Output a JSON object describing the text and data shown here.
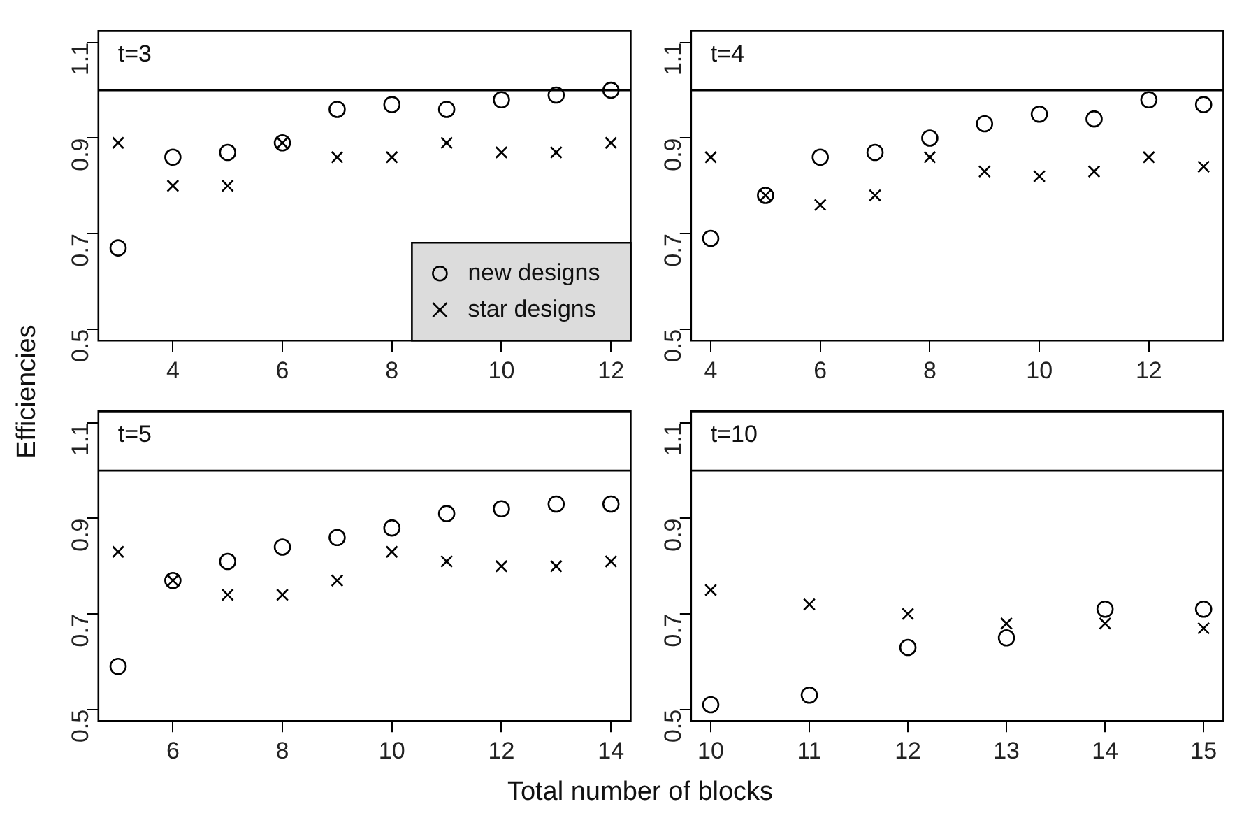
{
  "chart_data": [
    {
      "type": "scatter",
      "title": "t=3",
      "xlabel": "Total number of blocks",
      "ylabel": "Efficiencies",
      "x": [
        3,
        4,
        5,
        6,
        7,
        8,
        9,
        10,
        11,
        12
      ],
      "xlim": [
        2.64,
        12.36
      ],
      "xticks": [
        4,
        6,
        8,
        10,
        12
      ],
      "ylim": [
        0.476,
        1.124
      ],
      "yticks": [
        0.5,
        0.7,
        0.9,
        1.1
      ],
      "grid": false,
      "legend": "bottom right",
      "ref_lines": [
        {
          "axis": "y",
          "value": 1.0,
          "color": "#000000"
        }
      ],
      "series": [
        {
          "name": "new designs",
          "color": "#000000",
          "marker": "circle",
          "values": [
            0.67,
            0.86,
            0.87,
            0.89,
            0.96,
            0.97,
            0.96,
            0.98,
            0.99,
            1.0
          ]
        },
        {
          "name": "star designs",
          "color": "#000000",
          "marker": "cross",
          "values": [
            0.89,
            0.8,
            0.8,
            0.89,
            0.86,
            0.86,
            0.89,
            0.87,
            0.87,
            0.89
          ]
        }
      ]
    },
    {
      "type": "scatter",
      "title": "t=4",
      "x": [
        4,
        5,
        6,
        7,
        8,
        9,
        10,
        11,
        12,
        13
      ],
      "xlim": [
        3.64,
        13.36
      ],
      "xticks": [
        4,
        6,
        8,
        10,
        12
      ],
      "ylim": [
        0.476,
        1.124
      ],
      "yticks": [
        0.5,
        0.7,
        0.9,
        1.1
      ],
      "grid": false,
      "ref_lines": [
        {
          "axis": "y",
          "value": 1.0,
          "color": "#000000"
        }
      ],
      "series": [
        {
          "color": "#000000",
          "marker": "circle",
          "values": [
            0.69,
            0.78,
            0.86,
            0.87,
            0.9,
            0.93,
            0.95,
            0.94,
            0.98,
            0.97
          ]
        },
        {
          "color": "#000000",
          "marker": "cross",
          "values": [
            0.86,
            0.78,
            0.76,
            0.78,
            0.86,
            0.83,
            0.82,
            0.83,
            0.86,
            0.84
          ]
        }
      ]
    },
    {
      "type": "scatter",
      "title": "t=5",
      "x": [
        5,
        6,
        7,
        8,
        9,
        10,
        11,
        12,
        13,
        14
      ],
      "xlim": [
        4.64,
        14.36
      ],
      "xticks": [
        6,
        8,
        10,
        12,
        14
      ],
      "ylim": [
        0.476,
        1.124
      ],
      "yticks": [
        0.5,
        0.7,
        0.9,
        1.1
      ],
      "grid": false,
      "ref_lines": [
        {
          "axis": "y",
          "value": 1.0,
          "color": "#000000"
        }
      ],
      "series": [
        {
          "color": "#000000",
          "marker": "circle",
          "values": [
            0.59,
            0.77,
            0.81,
            0.84,
            0.86,
            0.88,
            0.91,
            0.92,
            0.93,
            0.93
          ]
        },
        {
          "color": "#000000",
          "marker": "cross",
          "values": [
            0.83,
            0.77,
            0.74,
            0.74,
            0.77,
            0.83,
            0.81,
            0.8,
            0.8,
            0.81
          ]
        }
      ]
    },
    {
      "type": "scatter",
      "title": "t=10",
      "x": [
        10,
        11,
        12,
        13,
        14,
        15
      ],
      "xlim": [
        9.8,
        15.2
      ],
      "xticks": [
        10,
        11,
        12,
        13,
        14,
        15
      ],
      "ylim": [
        0.476,
        1.124
      ],
      "yticks": [
        0.5,
        0.7,
        0.9,
        1.1
      ],
      "grid": false,
      "ref_lines": [
        {
          "axis": "y",
          "value": 1.0,
          "color": "#000000"
        }
      ],
      "series": [
        {
          "color": "#000000",
          "marker": "circle",
          "values": [
            0.51,
            0.53,
            0.63,
            0.65,
            0.71,
            0.71
          ]
        },
        {
          "color": "#000000",
          "marker": "cross",
          "values": [
            0.75,
            0.72,
            0.7,
            0.68,
            0.68,
            0.67
          ]
        }
      ]
    }
  ]
}
